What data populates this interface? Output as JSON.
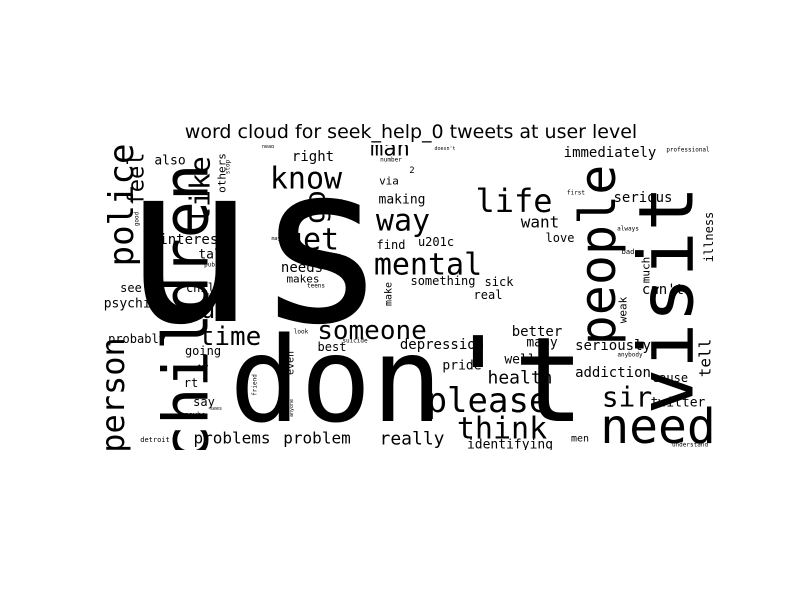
{
  "chart_data": {
    "type": "word_cloud",
    "title": "word cloud for seek_help_0 tweets at user level",
    "colors": {
      "background": "#ffffff",
      "text": "#000000"
    },
    "words": [
      {
        "text": "us",
        "weight": 100
      },
      {
        "text": "don't",
        "weight": 72
      },
      {
        "text": "visit",
        "weight": 42
      },
      {
        "text": "children",
        "weight": 35
      },
      {
        "text": "need",
        "weight": 34
      },
      {
        "text": "people",
        "weight": 32
      },
      {
        "text": "please",
        "weight": 22
      },
      {
        "text": "police",
        "weight": 22
      },
      {
        "text": "mental",
        "weight": 22
      },
      {
        "text": "person",
        "weight": 20
      },
      {
        "text": "life",
        "weight": 20
      },
      {
        "text": "way",
        "weight": 20
      },
      {
        "text": "know",
        "weight": 20
      },
      {
        "text": "someone",
        "weight": 18
      },
      {
        "text": "get",
        "weight": 18
      },
      {
        "text": "think",
        "weight": 18
      },
      {
        "text": "like",
        "weight": 18
      },
      {
        "text": "sir",
        "weight": 18
      },
      {
        "text": "time",
        "weight": 17
      },
      {
        "text": "go",
        "weight": 16
      },
      {
        "text": "u",
        "weight": 16
      },
      {
        "text": "man",
        "weight": 15
      },
      {
        "text": "feel",
        "weight": 14
      },
      {
        "text": "really",
        "weight": 12
      },
      {
        "text": "health",
        "weight": 12
      },
      {
        "text": "want",
        "weight": 10
      },
      {
        "text": "problems",
        "weight": 10
      },
      {
        "text": "problem",
        "weight": 10
      },
      {
        "text": "tell",
        "weight": 9
      },
      {
        "text": "serious",
        "weight": 9
      },
      {
        "text": "immediately",
        "weight": 9
      },
      {
        "text": "needs",
        "weight": 9
      },
      {
        "text": "seriously",
        "weight": 9
      },
      {
        "text": "addiction",
        "weight": 9
      },
      {
        "text": "right",
        "weight": 9
      },
      {
        "text": "depression",
        "weight": 8
      },
      {
        "text": "interest",
        "weight": 8
      },
      {
        "text": "better",
        "weight": 8
      },
      {
        "text": "can't",
        "weight": 8
      },
      {
        "text": "identifying",
        "weight": 8
      },
      {
        "text": "making",
        "weight": 8
      },
      {
        "text": "talk",
        "weight": 8
      },
      {
        "text": "pride",
        "weight": 8
      },
      {
        "text": "psychics",
        "weight": 8
      },
      {
        "text": "twitter",
        "weight": 8
      },
      {
        "text": "also",
        "weight": 7
      },
      {
        "text": "well",
        "weight": 7
      },
      {
        "text": "many",
        "weight": 7
      },
      {
        "text": "love",
        "weight": 7
      },
      {
        "text": "illness",
        "weight": 7
      },
      {
        "text": "best",
        "weight": 7
      },
      {
        "text": "going",
        "weight": 7
      },
      {
        "text": "probably",
        "weight": 7
      },
      {
        "text": "child",
        "weight": 7
      },
      {
        "text": "sick",
        "weight": 7
      },
      {
        "text": "real",
        "weight": 7
      },
      {
        "text": "something",
        "weight": 7
      },
      {
        "text": "find",
        "weight": 7
      },
      {
        "text": "u201c",
        "weight": 7
      },
      {
        "text": "cause",
        "weight": 7
      },
      {
        "text": "much",
        "weight": 7
      },
      {
        "text": "others",
        "weight": 7
      },
      {
        "text": "makes",
        "weight": 7
      },
      {
        "text": "weak",
        "weight": 7
      },
      {
        "text": "via",
        "weight": 7
      },
      {
        "text": "say",
        "weight": 7
      },
      {
        "text": "see",
        "weight": 7
      },
      {
        "text": "rt",
        "weight": 7
      },
      {
        "text": "men",
        "weight": 6
      },
      {
        "text": "even",
        "weight": 6
      },
      {
        "text": "make",
        "weight": 6
      },
      {
        "text": "maybe",
        "weight": 5
      },
      {
        "text": "bad",
        "weight": 5
      },
      {
        "text": "2",
        "weight": 5
      },
      {
        "text": "public",
        "weight": 4
      },
      {
        "text": "good",
        "weight": 4
      },
      {
        "text": "still",
        "weight": 4
      },
      {
        "text": "detroit",
        "weight": 4
      },
      {
        "text": "understand",
        "weight": 4
      },
      {
        "text": "professional",
        "weight": 4
      },
      {
        "text": "first",
        "weight": 4
      },
      {
        "text": "always",
        "weight": 4
      },
      {
        "text": "number",
        "weight": 4
      },
      {
        "text": "friend",
        "weight": 4
      },
      {
        "text": "anybody",
        "weight": 4
      },
      {
        "text": "suicide",
        "weight": 4
      },
      {
        "text": "stop",
        "weight": 4
      },
      {
        "text": "look",
        "weight": 4
      },
      {
        "text": "teens",
        "weight": 4
      },
      {
        "text": "encourage",
        "weight": 3
      },
      {
        "text": "sad",
        "weight": 3
      },
      {
        "text": "doesn't",
        "weight": 3
      },
      {
        "text": "head",
        "weight": 3
      },
      {
        "text": "try",
        "weight": 3
      },
      {
        "text": "anyone",
        "weight": 3
      },
      {
        "text": "sees",
        "weight": 3
      },
      {
        "text": "may",
        "weight": 3
      }
    ]
  }
}
